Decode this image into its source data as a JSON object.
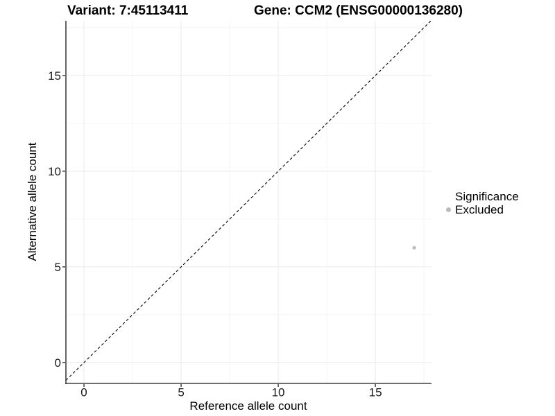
{
  "chart_data": {
    "type": "scatter",
    "titles": {
      "left": "Variant: 7:45113411",
      "right": "Gene: CCM2 (ENSG00000136280)"
    },
    "xlabel": "Reference allele count",
    "ylabel": "Alternative allele count",
    "xlim": [
      -0.93,
      17.89
    ],
    "ylim": [
      -1.09,
      17.86
    ],
    "xticks": [
      0,
      5,
      10,
      15
    ],
    "yticks": [
      0,
      5,
      10,
      15
    ],
    "xminor": [
      2.5,
      7.5,
      12.5,
      17.5
    ],
    "yminor": [
      2.5,
      7.5,
      12.5,
      17.5
    ],
    "grid": true,
    "identity_line": {
      "slope": 1,
      "intercept": 0,
      "style": "dashed",
      "color": "#000000"
    },
    "points": [
      {
        "x": 17,
        "y": 6,
        "series": "Excluded"
      }
    ],
    "legend": {
      "position": "right",
      "title": "Significance",
      "items": [
        {
          "label": "Excluded",
          "color": "#bcbcbc"
        }
      ]
    },
    "colors": {
      "point": "#bcbcbc",
      "axis_line": "#3f3f3f",
      "tick_mark": "#333333",
      "grid_major": "#e9e9e9",
      "grid_minor": "#f4f4f4",
      "tick_text": "#1a1a1a"
    }
  }
}
